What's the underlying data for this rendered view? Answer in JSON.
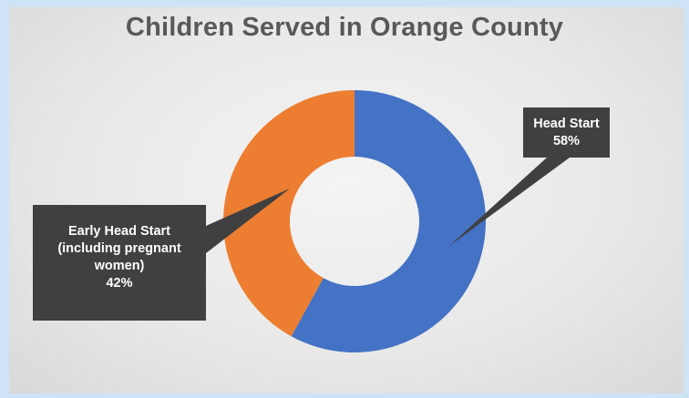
{
  "chart_data": {
    "type": "pie",
    "variant": "donut",
    "title": "Children Served in Orange County",
    "slices": [
      {
        "label": "Head Start",
        "value": 58,
        "value_label": "58%",
        "color": "#4472c4"
      },
      {
        "label_lines": [
          "Early Head Start",
          "(including pregnant",
          "women)"
        ],
        "value": 42,
        "value_label": "42%",
        "color": "#ed7d31"
      }
    ],
    "legend": "none",
    "data_labels": "callouts"
  },
  "colors": {
    "background": "#e9e9e9",
    "callout": "#404040"
  }
}
